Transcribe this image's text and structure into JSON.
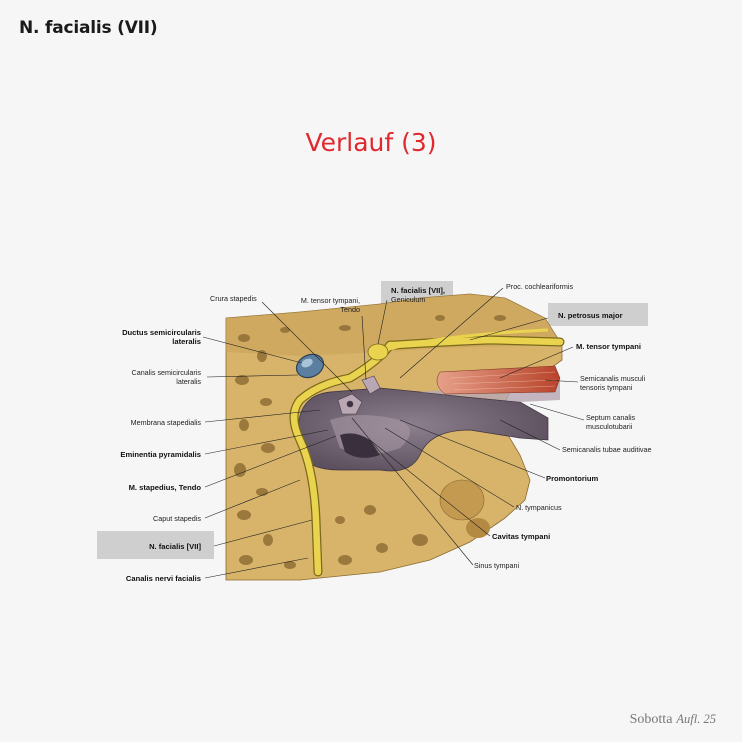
{
  "slide": {
    "title": "N. facialis (VII)",
    "subtitle": "Verlauf (3)"
  },
  "labels": {
    "crura_stapedis": "Crura stapedis",
    "tensor_tendo_1": "M. tensor tympani,",
    "tensor_tendo_2": "Tendo",
    "geniculum_1": "N. facialis [VII],",
    "geniculum_2": "Geniculum",
    "proc_cochleariformis": "Proc. cochleariformis",
    "petrosus_major": "N. petrosus major",
    "tensor_tympani": "M. tensor tympani",
    "semicanalis_musculi_1": "Semicanalis musculi",
    "semicanalis_musculi_2": "tensoris tympani",
    "septum_1": "Septum canalis",
    "septum_2": "musculotubarii",
    "semicanalis_tubae": "Semicanalis tubae auditivae",
    "promontorium": "Promontorium",
    "n_tympanicus": "N. tympanicus",
    "cavitas_tympani": "Cavitas tympani",
    "sinus_tympani": "Sinus tympani",
    "ductus_1": "Ductus semicircularis",
    "ductus_2": "lateralis",
    "canalis_semi_1": "Canalis semicircularis",
    "canalis_semi_2": "lateralis",
    "membrana_stapedialis": "Membrana stapedialis",
    "eminentia_pyramidalis": "Eminentia pyramidalis",
    "stapedius_tendo": "M. stapedius, Tendo",
    "caput_stapedis": "Caput stapedis",
    "n_facialis": "N. facialis [VII]",
    "canalis_nervi": "Canalis nervi facialis"
  },
  "footer": {
    "brand": "Sobotta",
    "edition": "Aufl. 25"
  },
  "colors": {
    "subtitle": "#e0282e",
    "bone": "#d8b36a",
    "nerve": "#ead34e",
    "muscle": "#c8553b",
    "highlight_box": "#cfcfcf"
  }
}
